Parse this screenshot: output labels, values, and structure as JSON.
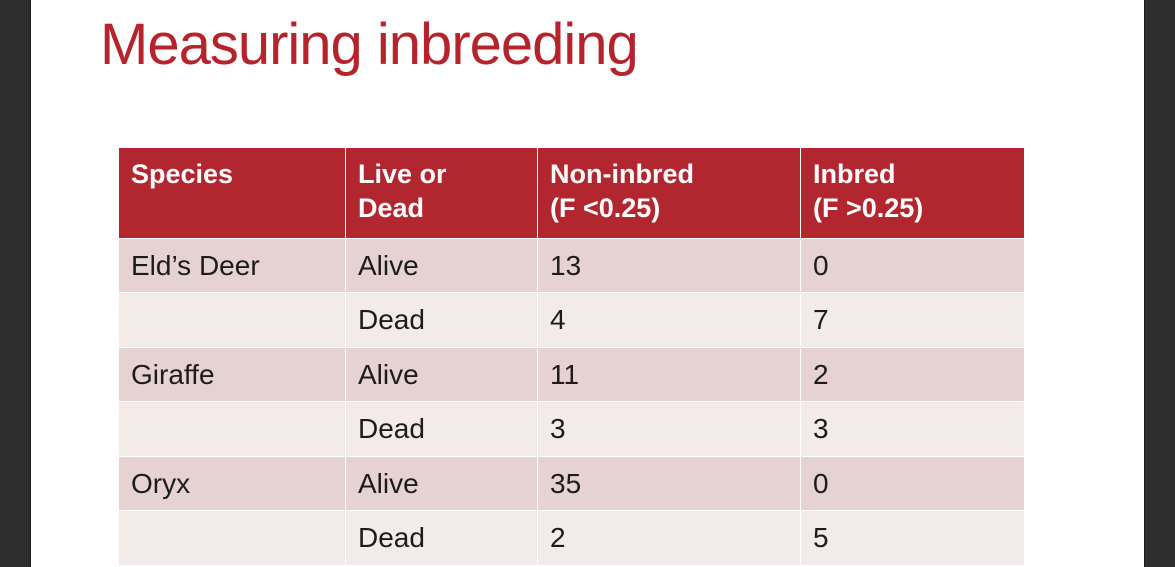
{
  "slide": {
    "title": "Measuring inbreeding"
  },
  "table": {
    "headers": [
      "Species",
      "Live or\nDead",
      "Non-inbred\n(F <0.25)",
      "Inbred\n(F >0.25)"
    ],
    "rows": [
      [
        "Eld’s Deer",
        "Alive",
        "13",
        "0"
      ],
      [
        "",
        "Dead",
        "4",
        "7"
      ],
      [
        "Giraffe",
        "Alive",
        "11",
        "2"
      ],
      [
        "",
        "Dead",
        "3",
        "3"
      ],
      [
        "Oryx",
        "Alive",
        "35",
        "0"
      ],
      [
        "",
        "Dead",
        "2",
        "5"
      ]
    ]
  },
  "colors": {
    "accent_red": "#b2262f",
    "title_red": "#b5232d",
    "row_dark_pink": "#e7d2d3",
    "row_light_pink": "#f3eaea",
    "edge_bar": "#2e2e2e"
  }
}
